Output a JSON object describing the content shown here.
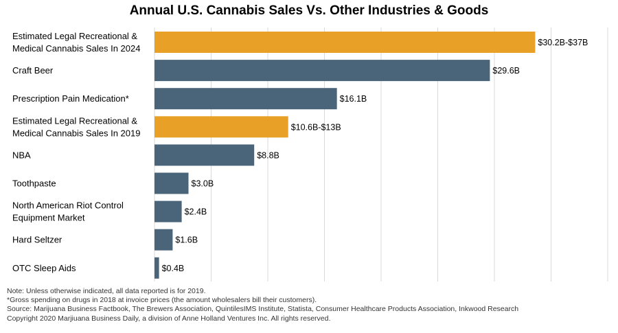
{
  "chart_data": {
    "type": "bar",
    "orientation": "horizontal",
    "title": "Annual U.S. Cannabis Sales Vs. Other Industries & Goods",
    "categories": [
      "Estimated Legal Recreational & Medical Cannabis Sales In 2024",
      "Craft Beer",
      "Prescription Pain Medication*",
      "Estimated Legal Recreational & Medical Cannabis Sales In 2019",
      "NBA",
      "Toothpaste",
      "North American Riot Control Equipment Market",
      "Hard Seltzer",
      "OTC Sleep Aids"
    ],
    "values": [
      33.6,
      29.6,
      16.1,
      11.8,
      8.8,
      3.0,
      2.4,
      1.6,
      0.4
    ],
    "ranges": [
      [
        30.2,
        37
      ],
      null,
      null,
      [
        10.6,
        13
      ],
      null,
      null,
      null,
      null,
      null
    ],
    "value_labels": [
      "$30.2B-$37B",
      "$29.6B",
      "$16.1B",
      "$10.6B-$13B",
      "$8.8B",
      "$3.0B",
      "$2.4B",
      "$1.6B",
      "$0.4B"
    ],
    "highlight": [
      true,
      false,
      false,
      true,
      false,
      false,
      false,
      false,
      false
    ],
    "xlim": [
      0,
      40
    ],
    "grid": true,
    "colors": {
      "highlight": "#E8A027",
      "default": "#4A6479"
    },
    "xlabel": "",
    "ylabel": ""
  },
  "notes": [
    "Note: Unless otherwise indicated, all data reported is for 2019.",
    "*Gross spending on drugs in 2018 at invoice prices (the amount wholesalers bill their customers).",
    "Source: Marijuana Business Factbook, The Brewers Association, QuintilesIMS Institute, Statista, Consumer Healthcare Products Association, Inkwood Research",
    "Copyright 2020 Marjiuana Business Daily, a division of Anne Holland Ventures Inc. All rights reserved."
  ]
}
